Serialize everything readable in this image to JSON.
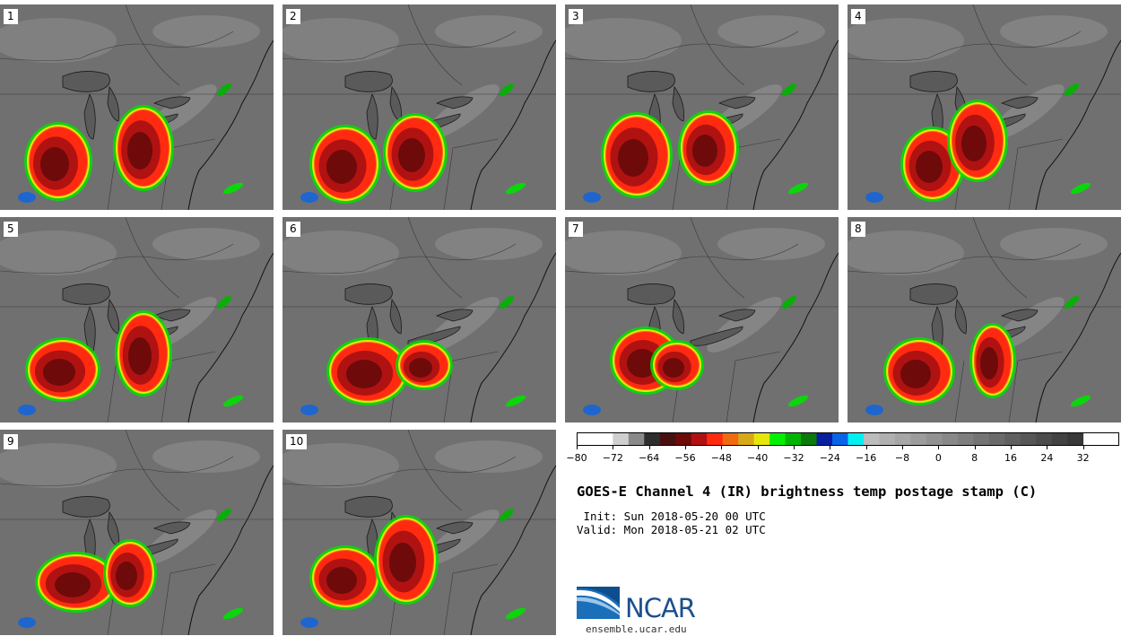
{
  "panels": [
    {
      "label": "1"
    },
    {
      "label": "2"
    },
    {
      "label": "3"
    },
    {
      "label": "4"
    },
    {
      "label": "5"
    },
    {
      "label": "6"
    },
    {
      "label": "7"
    },
    {
      "label": "8"
    },
    {
      "label": "9"
    },
    {
      "label": "10"
    }
  ],
  "colorbar": {
    "min": -80,
    "max": 40,
    "tick_labels": [
      "−80",
      "−72",
      "−64",
      "−56",
      "−48",
      "−40",
      "−32",
      "−24",
      "−16",
      "−8",
      "0",
      "8",
      "16",
      "24",
      "32"
    ],
    "tick_values": [
      -80,
      -72,
      -64,
      -56,
      -48,
      -40,
      -32,
      -24,
      -16,
      -8,
      0,
      8,
      16,
      24,
      32
    ],
    "colors": [
      "#cfcfcf",
      "#8a8a8a",
      "#2e2e2e",
      "#4a1010",
      "#6e0a0a",
      "#b01212",
      "#ff2a10",
      "#f06a10",
      "#d8a818",
      "#e6e60a",
      "#00f000",
      "#00b400",
      "#0a7a0a",
      "#0a1ea0",
      "#0a64e6",
      "#00f0f0",
      "#bcbcbc",
      "#b0b0b0",
      "#a6a6a6",
      "#9c9c9c",
      "#929292",
      "#888888",
      "#7e7e7e",
      "#747474",
      "#6a6a6a",
      "#606060",
      "#565656",
      "#4c4c4c",
      "#424242",
      "#383838"
    ]
  },
  "title": "GOES-E Channel 4 (IR) brightness temp postage stamp (C)",
  "init_text": " Init: Sun 2018-05-20 00 UTC",
  "valid_text": "Valid: Mon 2018-05-21 02 UTC",
  "logo": {
    "text": "NCAR",
    "url": "ensemble.ucar.edu",
    "color": "#1b4f8c"
  }
}
